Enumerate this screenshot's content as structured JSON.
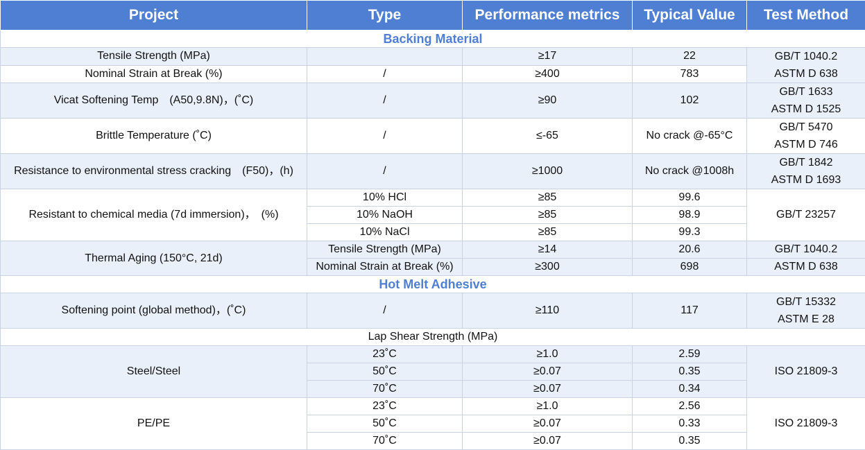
{
  "header": {
    "project": "Project",
    "type": "Type",
    "performance_metrics": "Performance metrics",
    "typical_value": "Typical Value",
    "test_method": "Test Method"
  },
  "sections": {
    "backing_material": "Backing Material",
    "hot_melt_adhesive": "Hot Melt Adhesive",
    "lap_shear_strength": "Lap Shear Strength (MPa)"
  },
  "rows": {
    "tensile": {
      "project": "Tensile Strength (MPa)",
      "type": "",
      "metric": "≥17",
      "value": "22"
    },
    "strain": {
      "project": "Nominal Strain at Break (%)",
      "type": "/",
      "metric": "≥400",
      "value": "783"
    },
    "tensile_strain_method": [
      "GB/T 1040.2",
      "ASTM D 638"
    ],
    "vicat": {
      "project": "Vicat Softening Temp　(A50,9.8N)，(˚C)",
      "type": "/",
      "metric": "≥90",
      "value": "102",
      "method": [
        "GB/T 1633",
        "ASTM D 1525"
      ]
    },
    "brittle": {
      "project": "Brittle Temperature (˚C)",
      "type": "/",
      "metric": "≤-65",
      "value": "No crack @-65°C",
      "method": [
        "GB/T 5470",
        "ASTM D 746"
      ]
    },
    "escr": {
      "project": "Resistance to environmental stress cracking　(F50)，(h)",
      "type": "/",
      "metric": "≥1000",
      "value": "No crack @1008h",
      "method": [
        "GB/T 1842",
        "ASTM D 1693"
      ]
    },
    "chemical": {
      "project": "Resistant to chemical media (7d immersion)，　(%)",
      "method": "GB/T 23257",
      "items": [
        {
          "type": "10% HCl",
          "metric": "≥85",
          "value": "99.6"
        },
        {
          "type": "10% NaOH",
          "metric": "≥85",
          "value": "98.9"
        },
        {
          "type": "10% NaCl",
          "metric": "≥85",
          "value": "99.3"
        }
      ]
    },
    "thermal": {
      "project": "Thermal Aging (150°C, 21d)",
      "items": [
        {
          "type": "Tensile Strength (MPa)",
          "metric": "≥14",
          "value": "20.6",
          "method": "GB/T 1040.2"
        },
        {
          "type": "Nominal Strain at Break (%)",
          "metric": "≥300",
          "value": "698",
          "method": "ASTM D 638"
        }
      ]
    },
    "softening": {
      "project": "Softening point (global method)，(˚C)",
      "type": "/",
      "metric": "≥110",
      "value": "117",
      "method": [
        "GB/T 15332",
        "ASTM E 28"
      ]
    },
    "steel": {
      "project": "Steel/Steel",
      "method": "ISO 21809-3",
      "items": [
        {
          "type": "23˚C",
          "metric": "≥1.0",
          "value": "2.59"
        },
        {
          "type": "50˚C",
          "metric": "≥0.07",
          "value": "0.35"
        },
        {
          "type": "70˚C",
          "metric": "≥0.07",
          "value": "0.34"
        }
      ]
    },
    "pe": {
      "project": "PE/PE",
      "method": "ISO 21809-3",
      "items": [
        {
          "type": "23˚C",
          "metric": "≥1.0",
          "value": "2.56"
        },
        {
          "type": "50˚C",
          "metric": "≥0.07",
          "value": "0.33"
        },
        {
          "type": "70˚C",
          "metric": "≥0.07",
          "value": "0.35"
        }
      ]
    }
  }
}
